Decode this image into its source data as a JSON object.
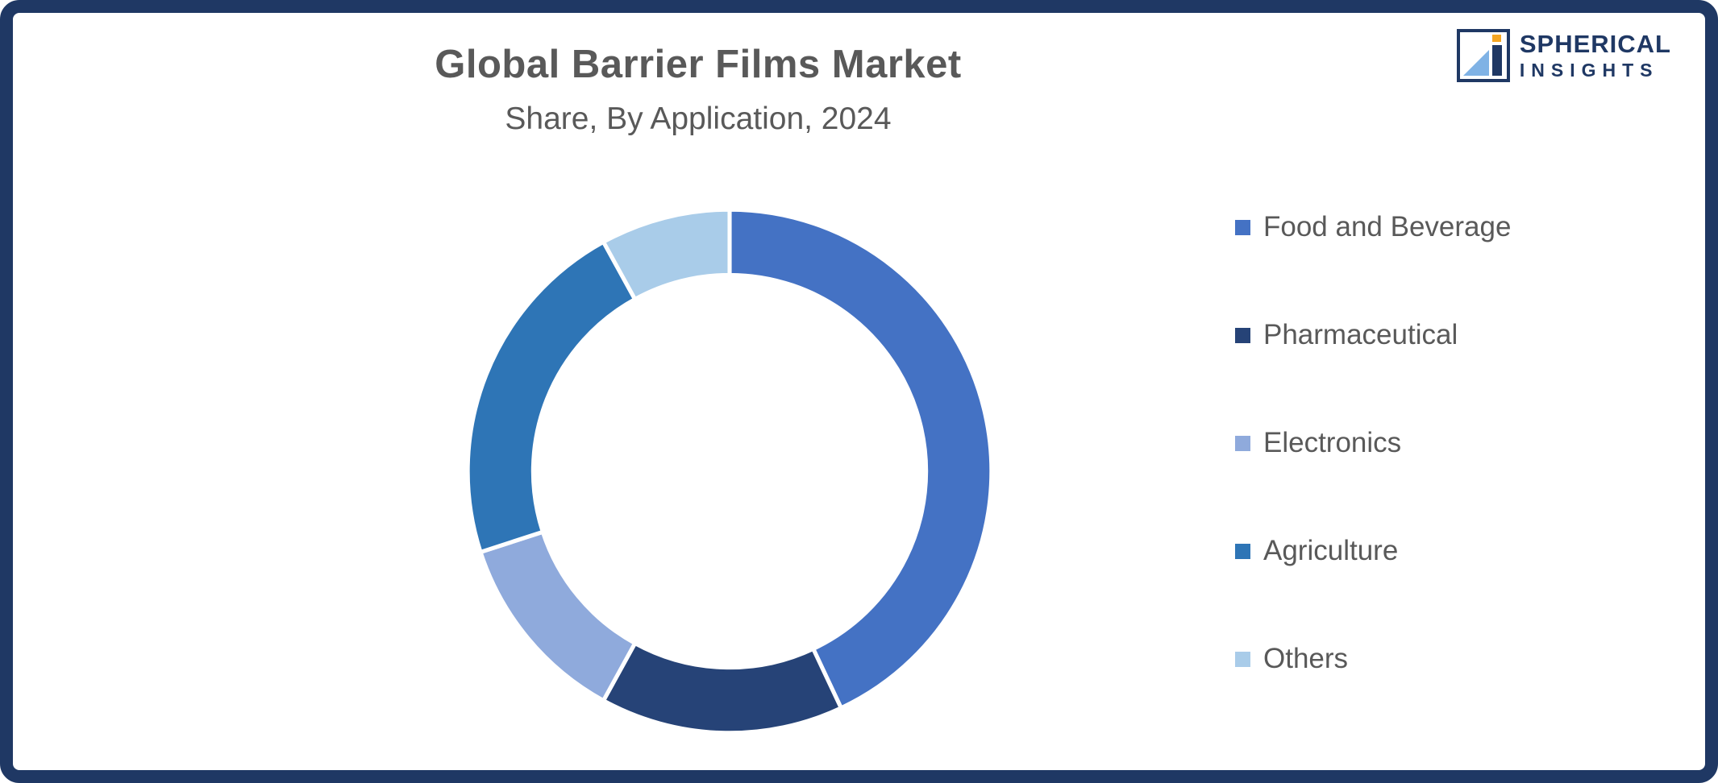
{
  "page": {
    "border_color": "#1F3864",
    "background_color": "#FFFFFF"
  },
  "header": {
    "title": "Global Barrier Films Market",
    "subtitle": "Share, By Application, 2024"
  },
  "brand": {
    "line1": "SPHERICAL",
    "line2": "INSIGHTS",
    "icon": "spherical-insights-logo-mark",
    "accent_orange": "#F5A623",
    "navy": "#1F3864",
    "light_blue": "#7FB2E5"
  },
  "chart_data": {
    "type": "pie",
    "variant": "donut",
    "title": "Global Barrier Films Market Share, By Application, 2024",
    "unit": "%",
    "start_angle_deg": 0,
    "direction": "clockwise",
    "inner_radius_ratio": 0.75,
    "legend_position": "right",
    "segment_gap_color": "#FFFFFF",
    "segments": [
      {
        "label": "Food and Beverage",
        "value": 43,
        "color": "#4472C4"
      },
      {
        "label": "Pharmaceutical",
        "value": 15,
        "color": "#264377"
      },
      {
        "label": "Electronics",
        "value": 12,
        "color": "#8FAADC"
      },
      {
        "label": "Agriculture",
        "value": 22,
        "color": "#2E75B6"
      },
      {
        "label": "Others",
        "value": 8,
        "color": "#A9CCE9"
      }
    ]
  }
}
